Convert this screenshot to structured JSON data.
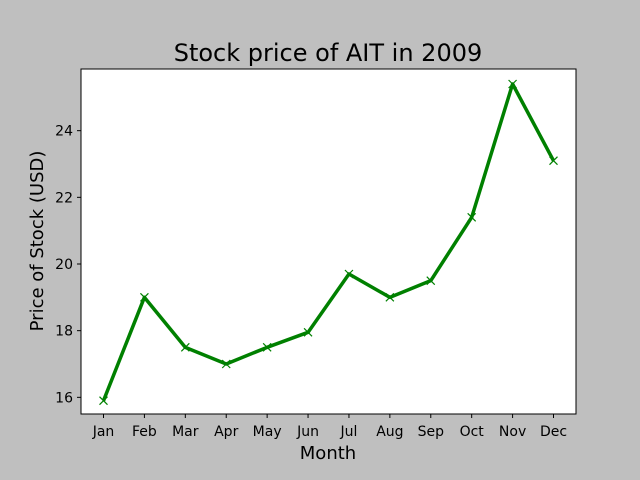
{
  "chart_data": {
    "type": "line",
    "title": "Stock price of AIT in 2009",
    "xlabel": "Month",
    "ylabel": "Price of Stock (USD)",
    "categories": [
      "Jan",
      "Feb",
      "Mar",
      "Apr",
      "May",
      "Jun",
      "Jul",
      "Aug",
      "Sep",
      "Oct",
      "Nov",
      "Dec"
    ],
    "values": [
      15.9,
      19.0,
      17.5,
      17.0,
      17.5,
      17.95,
      19.7,
      19.0,
      19.5,
      21.4,
      25.4,
      23.1
    ],
    "ylim": [
      15.5,
      25.85
    ],
    "yticks": [
      16,
      18,
      20,
      22,
      24
    ],
    "grid": false,
    "marker": "x",
    "colors": {
      "line": "#008000",
      "figure_background": "#bfbfbf",
      "plot_background": "#ffffff"
    }
  }
}
